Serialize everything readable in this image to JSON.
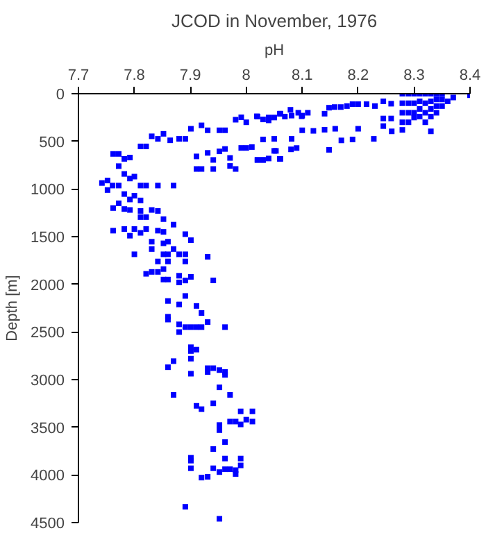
{
  "chart_data": {
    "type": "scatter",
    "title": "JCOD in November, 1976",
    "xlabel": "pH",
    "ylabel": "Depth [m]",
    "xlim": [
      7.7,
      8.4
    ],
    "xticks": [
      7.7,
      7.8,
      7.9,
      8,
      8.1,
      8.2,
      8.3,
      8.4
    ],
    "ylim": [
      4500,
      0
    ],
    "yticks": [
      0,
      500,
      1000,
      1500,
      2000,
      2500,
      3000,
      3500,
      4000,
      4500
    ],
    "grid": false,
    "marker": "square",
    "series": [
      {
        "color": "#0000ff",
        "x": [
          8.279,
          8.279,
          8.279,
          8.279,
          8.279,
          8.29,
          8.29,
          8.29,
          8.29,
          8.3,
          8.3,
          8.3,
          8.3,
          8.31,
          8.31,
          8.31,
          8.31,
          8.32,
          8.32,
          8.32,
          8.32,
          8.33,
          8.33,
          8.33,
          8.33,
          8.34,
          8.34,
          8.34,
          8.34,
          8.35,
          8.35,
          8.35,
          8.37,
          8.4,
          8.36,
          8.259,
          8.259,
          8.245,
          8.245,
          8.245,
          8.23,
          8.215,
          8.2,
          8.2,
          8.19,
          8.18,
          8.169,
          8.158,
          8.148,
          8.148,
          8.14,
          8.11,
          8.1,
          8.1,
          8.093,
          8.081,
          8.081,
          8.069,
          8.06,
          8.05,
          8.05,
          8.04,
          8.03,
          8.02,
          8.159,
          8.14,
          8.12,
          8.26,
          8.33,
          8.228,
          8.19,
          8.17,
          8.03,
          8.08,
          8.09,
          8.05,
          8.04,
          8.03,
          8.02,
          8.06,
          7.742,
          7.752,
          7.752,
          7.761,
          7.772,
          7.762,
          7.772,
          7.772,
          7.782,
          7.792,
          7.811,
          7.821,
          7.831,
          7.842,
          7.852,
          7.864,
          7.88,
          7.891,
          7.901,
          7.92,
          7.931,
          7.952,
          7.962,
          7.981,
          7.991,
          8.0,
          8.019,
          8.04,
          8.061,
          8.079,
          8.099,
          7.911,
          7.911,
          7.92,
          7.941,
          7.941,
          7.931,
          7.952,
          7.962,
          7.971,
          7.971,
          7.981,
          7.991,
          8.0,
          8.01,
          8.02,
          8.03,
          8.053,
          8.061,
          7.782,
          7.792,
          7.8,
          7.811,
          7.821,
          7.842,
          7.87,
          7.782,
          7.792,
          7.8,
          7.811,
          7.772,
          7.762,
          7.782,
          7.792,
          7.811,
          7.811,
          7.821,
          7.831,
          7.842,
          7.852,
          7.762,
          7.782,
          7.792,
          7.8,
          7.811,
          7.821,
          7.842,
          7.852,
          7.87,
          7.891,
          7.901,
          7.831,
          7.852,
          7.86,
          7.87,
          7.8,
          7.831,
          7.852,
          7.86,
          7.88,
          7.891,
          7.931,
          7.842,
          7.86,
          7.891,
          7.852,
          7.842,
          7.821,
          7.831,
          7.88,
          7.901,
          7.852,
          7.86,
          7.88,
          7.891,
          7.941,
          7.86,
          7.88,
          7.891,
          7.911,
          7.92,
          7.86,
          7.86,
          7.88,
          7.891,
          7.901,
          7.911,
          7.92,
          7.931,
          7.962,
          7.88,
          7.901,
          7.901,
          7.911,
          7.901,
          7.87,
          7.86,
          7.931,
          7.941,
          7.901,
          7.931,
          7.952,
          7.962,
          7.962,
          7.952,
          7.87,
          7.971,
          7.941,
          7.911,
          7.92,
          7.99,
          8.011,
          7.971,
          7.981,
          8.0,
          8.011,
          7.99,
          7.952,
          7.952,
          7.962,
          7.941,
          7.901,
          7.901,
          7.901,
          7.962,
          7.99,
          7.941,
          7.952,
          7.962,
          7.971,
          7.981,
          7.981,
          7.99,
          7.92,
          7.931,
          7.891,
          7.952
        ],
        "values": [
          0,
          100,
          200,
          300,
          380,
          0,
          100,
          200,
          300,
          0,
          100,
          200,
          250,
          0,
          80,
          160,
          240,
          0,
          100,
          200,
          300,
          0,
          80,
          160,
          240,
          0,
          60,
          130,
          200,
          0,
          60,
          130,
          40,
          16,
          80,
          105,
          260,
          80,
          260,
          340,
          130,
          110,
          110,
          368,
          110,
          130,
          140,
          140,
          147,
          589,
          210,
          200,
          230,
          384,
          200,
          230,
          474,
          240,
          210,
          250,
          474,
          250,
          270,
          240,
          368,
          378,
          390,
          395,
          395,
          474,
          480,
          490,
          480,
          584,
          570,
          600,
          680,
          695,
          695,
          684,
          937,
          911,
          1011,
          964,
          964,
          632,
          632,
          760,
          684,
          670,
          553,
          553,
          447,
          474,
          421,
          489,
          474,
          474,
          368,
          332,
          384,
          384,
          384,
          273,
          248,
          300,
          237,
          280,
          210,
          169,
          237,
          658,
          790,
          790,
          790,
          695,
          621,
          605,
          580,
          674,
          758,
          790,
          569,
          569,
          560,
          695,
          695,
          600,
          684,
          842,
          890,
          870,
          964,
          964,
          964,
          964,
          1053,
          1110,
          1070,
          1120,
          1150,
          1200,
          1210,
          1220,
          1230,
          1295,
          1295,
          1220,
          1230,
          1316,
          1437,
          1420,
          1490,
          1420,
          1460,
          1420,
          1437,
          1450,
          1374,
          1474,
          1537,
          1553,
          1570,
          1553,
          1630,
          1685,
          1630,
          1685,
          1685,
          1685,
          1685,
          1711,
          1760,
          1760,
          1760,
          1840,
          1870,
          1890,
          1870,
          1910,
          1922,
          1950,
          1950,
          1980,
          1960,
          1959,
          2175,
          2211,
          2122,
          2227,
          2301,
          2340,
          2370,
          2420,
          2449,
          2449,
          2449,
          2449,
          2396,
          2449,
          2501,
          2660,
          2700,
          2685,
          2780,
          2806,
          2870,
          2880,
          2880,
          2938,
          2920,
          2900,
          2920,
          2950,
          3081,
          3160,
          3160,
          3249,
          3275,
          3310,
          3333,
          3333,
          3440,
          3440,
          3420,
          3440,
          3470,
          3476,
          3530,
          3655,
          3728,
          3820,
          3850,
          3930,
          3828,
          3828,
          3930,
          3970,
          3940,
          3940,
          3950,
          3990,
          3900,
          4028,
          4020,
          4334,
          4460
        ]
      }
    ]
  }
}
